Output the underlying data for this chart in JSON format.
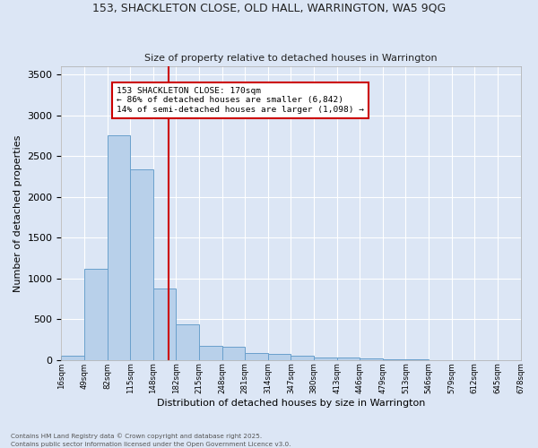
{
  "title_line1": "153, SHACKLETON CLOSE, OLD HALL, WARRINGTON, WA5 9QG",
  "title_line2": "Size of property relative to detached houses in Warrington",
  "xlabel": "Distribution of detached houses by size in Warrington",
  "ylabel": "Number of detached properties",
  "bar_values": [
    55,
    1120,
    2760,
    2340,
    880,
    440,
    175,
    165,
    90,
    70,
    55,
    30,
    30,
    20,
    10,
    5,
    3,
    2,
    2,
    2
  ],
  "bin_labels": [
    "16sqm",
    "49sqm",
    "82sqm",
    "115sqm",
    "148sqm",
    "182sqm",
    "215sqm",
    "248sqm",
    "281sqm",
    "314sqm",
    "347sqm",
    "380sqm",
    "413sqm",
    "446sqm",
    "479sqm",
    "513sqm",
    "546sqm",
    "579sqm",
    "612sqm",
    "645sqm",
    "678sqm"
  ],
  "bar_color": "#b8d0ea",
  "bar_edge_color": "#6aa0cc",
  "background_color": "#dce6f5",
  "grid_color": "#ffffff",
  "vline_color": "#cc0000",
  "annotation_title": "153 SHACKLETON CLOSE: 170sqm",
  "annotation_line2": "← 86% of detached houses are smaller (6,842)",
  "annotation_line3": "14% of semi-detached houses are larger (1,098) →",
  "annotation_box_color": "#cc0000",
  "annotation_text_color": "#000000",
  "ylim": [
    0,
    3600
  ],
  "yticks": [
    0,
    500,
    1000,
    1500,
    2000,
    2500,
    3000,
    3500
  ],
  "footnote1": "Contains HM Land Registry data © Crown copyright and database right 2025.",
  "footnote2": "Contains public sector information licensed under the Open Government Licence v3.0."
}
